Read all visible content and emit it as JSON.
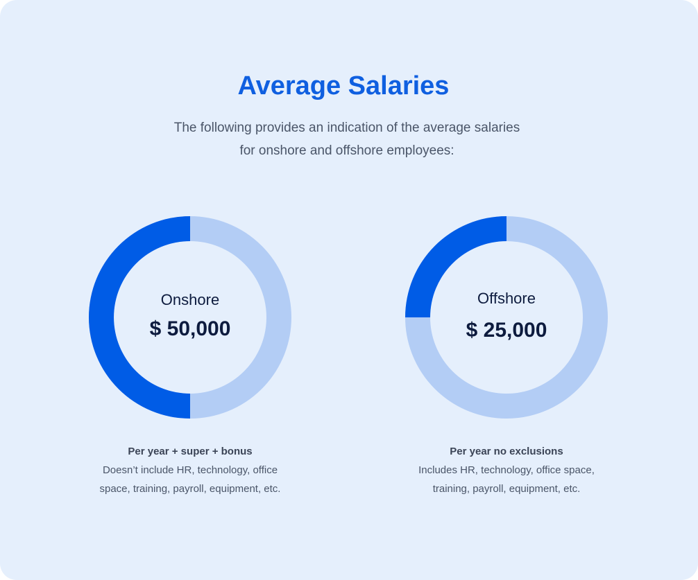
{
  "title": "Average Salaries",
  "subtitle": {
    "line1": "The following provides an indication of the average salaries",
    "line2": "for onshore and offshore employees:"
  },
  "colors": {
    "background": "#e5effc",
    "accent": "#0f5fe0",
    "ring_light": "#b3cdf5",
    "ring_dark": "#005ce6",
    "text_dark": "#0d1b3e",
    "text_muted": "#4a5568"
  },
  "chart_data": [
    {
      "type": "pie",
      "label": "Onshore",
      "amount": "$ 50,000",
      "filled_fraction": 0.5,
      "description": {
        "heading": "Per year + super + bonus",
        "line1": "Doesn’t include HR, technology, office",
        "line2": "space, training, payroll, equipment, etc."
      }
    },
    {
      "type": "pie",
      "label": "Offshore",
      "amount": "$ 25,000",
      "filled_fraction": 0.25,
      "description": {
        "heading": "Per year no exclusions",
        "line1": "Includes HR, technology, office space,",
        "line2": "training, payroll, equipment, etc."
      }
    }
  ]
}
